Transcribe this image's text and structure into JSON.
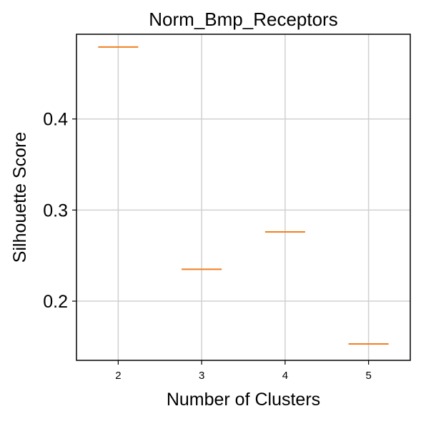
{
  "chart_data": {
    "type": "box",
    "title": "Norm_Bmp_Receptors",
    "xlabel": "Number of Clusters",
    "ylabel": "Silhouette Score",
    "categories": [
      "2",
      "3",
      "4",
      "5"
    ],
    "values": [
      0.479,
      0.235,
      0.276,
      0.153
    ],
    "ylim": [
      0.135,
      0.493
    ],
    "yticks": [
      {
        "value": 0.2,
        "label": "0.2"
      },
      {
        "value": 0.3,
        "label": "0.3"
      },
      {
        "value": 0.4,
        "label": "0.4"
      }
    ],
    "grid": true,
    "median_color": "#f07f20",
    "grid_color": "#d0d0d0",
    "axes_color": "#000000"
  }
}
